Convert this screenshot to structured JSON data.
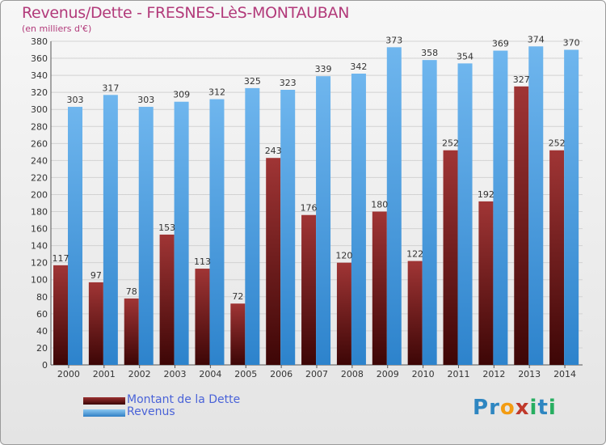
{
  "header": {
    "title": "Revenus/Dette - FRESNES-LèS-MONTAUBAN",
    "subtitle": "(en milliers d'€)"
  },
  "legend": {
    "items": [
      {
        "label": "Montant de la Dette",
        "color": "#6b1212"
      },
      {
        "label": "Revenus",
        "color": "#4a9fe0"
      }
    ]
  },
  "logo": {
    "text": "Proxiti",
    "letters": [
      "P",
      "r",
      "o",
      "x",
      "i",
      "t",
      "i"
    ],
    "colors": [
      "#2e86c1",
      "#2e86c1",
      "#f39c12",
      "#c0392b",
      "#27ae60",
      "#2e86c1",
      "#27ae60"
    ]
  },
  "chart_data": {
    "type": "bar",
    "categories": [
      "2000",
      "2001",
      "2002",
      "2003",
      "2004",
      "2005",
      "2006",
      "2007",
      "2008",
      "2009",
      "2010",
      "2011",
      "2012",
      "2013",
      "2014"
    ],
    "series": [
      {
        "name": "Montant de la Dette",
        "color": "#6b1212",
        "values": [
          117,
          97,
          78,
          153,
          113,
          72,
          243,
          176,
          120,
          180,
          122,
          252,
          192,
          327,
          252
        ]
      },
      {
        "name": "Revenus",
        "color": "#4a9fe0",
        "values": [
          303,
          317,
          303,
          309,
          312,
          325,
          323,
          339,
          342,
          373,
          358,
          354,
          369,
          374,
          370
        ]
      }
    ],
    "ylim": [
      0,
      380
    ],
    "ystep": 20,
    "grid": true,
    "legend_position": "bottom-left",
    "title": "Revenus/Dette - FRESNES-LèS-MONTAUBAN",
    "subtitle": "(en milliers d'€)"
  }
}
